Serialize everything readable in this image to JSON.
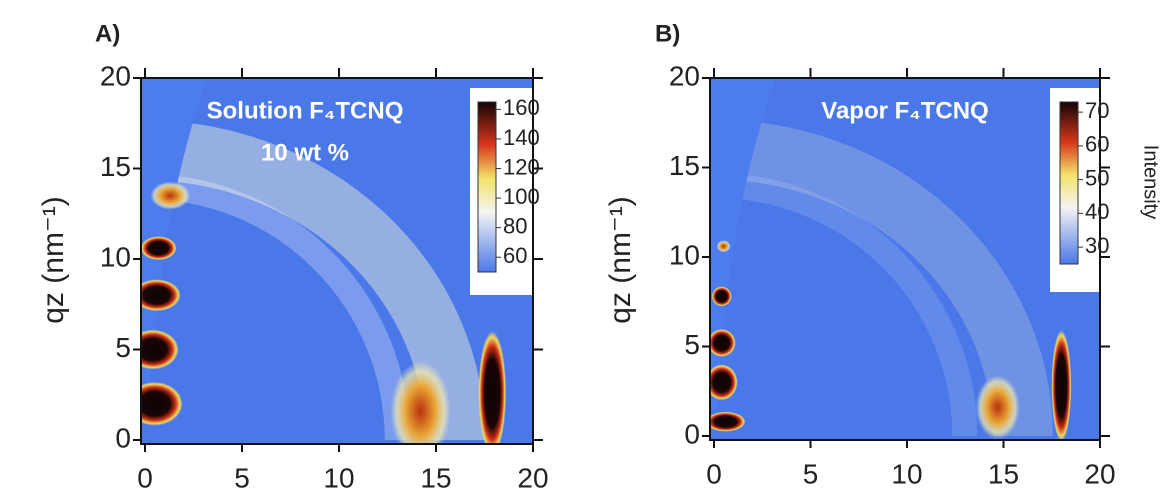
{
  "chart_data": [
    {
      "type": "image",
      "panel_label": "A)",
      "title": "Solution F₄TCNQ",
      "subtitle": "10 wt %",
      "y_label": "qz (nm⁻¹)",
      "xlim": [
        0,
        20
      ],
      "xticks": [
        0,
        5,
        10,
        15,
        20
      ],
      "ylim": [
        0,
        20
      ],
      "yticks": [
        0,
        5,
        10,
        15,
        20
      ],
      "colorbar": {
        "lim": [
          50,
          165
        ],
        "ticks": [
          60,
          80,
          100,
          120,
          140,
          160
        ]
      }
    },
    {
      "type": "image",
      "panel_label": "B)",
      "title": "Vapor F₄TCNQ",
      "y_label": "qz (nm⁻¹)",
      "xlim": [
        0,
        20
      ],
      "xticks": [
        0,
        5,
        10,
        15,
        20
      ],
      "ylim": [
        0,
        20
      ],
      "yticks": [
        0,
        5,
        10,
        15,
        20
      ],
      "colorbar": {
        "label": "Intensity",
        "lim": [
          25,
          73
        ],
        "ticks": [
          30,
          40,
          50,
          60,
          70
        ]
      }
    }
  ]
}
